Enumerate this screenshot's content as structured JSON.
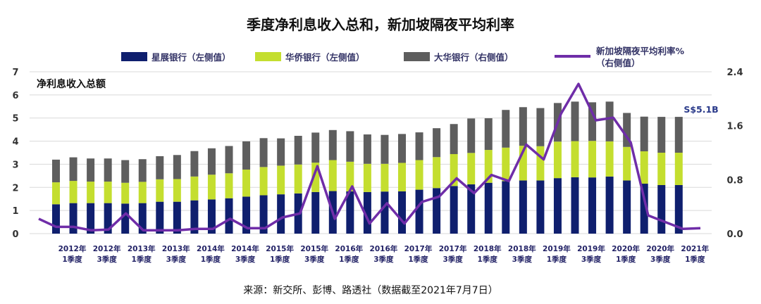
{
  "title": "季度净利息收入总和，新加坡隔夜平均利率",
  "legend": [
    {
      "key": "dbs",
      "label": "星展银行（左侧值）",
      "color": "#0f1f6e",
      "kind": "bar"
    },
    {
      "key": "ocbc",
      "label": "华侨银行（左侧值）",
      "color": "#c4de2f",
      "kind": "bar"
    },
    {
      "key": "uob",
      "label": "大华银行（右侧值）",
      "color": "#5e5e5e",
      "kind": "bar"
    },
    {
      "key": "sora",
      "label_line1": "新加坡隔夜平均利率%",
      "label_line2": "（右侧值）",
      "color": "#6f2da8",
      "kind": "line"
    }
  ],
  "annotation": "净利息收入总额",
  "end_label": "S$5.1B",
  "source": "来源：新交所、彭博、路透社（数据截至2021年7月7日）",
  "chart_data": {
    "type": "bar",
    "stacked": true,
    "title": "季度净利息收入总和，新加坡隔夜平均利率",
    "y_left": {
      "ylim": [
        0,
        7
      ],
      "ticks": [
        "0",
        "1",
        "2",
        "3",
        "4",
        "5",
        "6",
        "7"
      ]
    },
    "y_right": {
      "ylim": [
        0,
        2.4
      ],
      "ticks": [
        "0.0",
        "0.8",
        "1.6",
        "2.4"
      ]
    },
    "x_tick_labels": [
      {
        "index": 0,
        "line1": "2012年",
        "line2": "1季度"
      },
      {
        "index": 2,
        "line1": "2012年",
        "line2": "3季度"
      },
      {
        "index": 4,
        "line1": "2013年",
        "line2": "1季度"
      },
      {
        "index": 6,
        "line1": "2013年",
        "line2": "3季度"
      },
      {
        "index": 8,
        "line1": "2014年",
        "line2": "1季度"
      },
      {
        "index": 10,
        "line1": "2014年",
        "line2": "3季度"
      },
      {
        "index": 12,
        "line1": "2015年",
        "line2": "1季度"
      },
      {
        "index": 14,
        "line1": "2015年",
        "line2": "3季度"
      },
      {
        "index": 16,
        "line1": "2016年",
        "line2": "1季度"
      },
      {
        "index": 18,
        "line1": "2016年",
        "line2": "3季度"
      },
      {
        "index": 20,
        "line1": "2017年",
        "line2": "1季度"
      },
      {
        "index": 22,
        "line1": "2017年",
        "line2": "3季度"
      },
      {
        "index": 24,
        "line1": "2018年",
        "line2": "1季度"
      },
      {
        "index": 26,
        "line1": "2018年",
        "line2": "3季度"
      },
      {
        "index": 28,
        "line1": "2019年",
        "line2": "1季度"
      },
      {
        "index": 30,
        "line1": "2019年",
        "line2": "3季度"
      },
      {
        "index": 32,
        "line1": "2020年",
        "line2": "1季度"
      },
      {
        "index": 34,
        "line1": "2020年",
        "line2": "3季度"
      },
      {
        "index": 36,
        "line1": "2021年",
        "line2": "1季度"
      }
    ],
    "series": [
      {
        "name": "星展银行（左侧值）",
        "axis": "left",
        "values": [
          1.27,
          1.32,
          1.32,
          1.32,
          1.3,
          1.32,
          1.38,
          1.38,
          1.44,
          1.48,
          1.53,
          1.6,
          1.66,
          1.7,
          1.74,
          1.8,
          1.84,
          1.83,
          1.8,
          1.82,
          1.83,
          1.9,
          1.97,
          2.06,
          2.13,
          2.2,
          2.27,
          2.3,
          2.3,
          2.4,
          2.44,
          2.43,
          2.47,
          2.3,
          2.16,
          2.1,
          2.1
        ]
      },
      {
        "name": "华侨银行（左侧值）",
        "axis": "left",
        "values": [
          0.95,
          0.96,
          0.93,
          0.93,
          0.9,
          0.92,
          0.97,
          0.98,
          1.03,
          1.07,
          1.08,
          1.17,
          1.22,
          1.24,
          1.25,
          1.27,
          1.34,
          1.28,
          1.22,
          1.2,
          1.23,
          1.28,
          1.34,
          1.38,
          1.36,
          1.42,
          1.45,
          1.5,
          1.48,
          1.58,
          1.56,
          1.58,
          1.52,
          1.45,
          1.4,
          1.4,
          1.4
        ]
      },
      {
        "name": "大华银行（右侧值）",
        "axis": "left",
        "values": [
          0.98,
          1.02,
          1.0,
          1.0,
          0.98,
          0.98,
          1.0,
          1.04,
          1.1,
          1.14,
          1.18,
          1.22,
          1.25,
          1.18,
          1.24,
          1.3,
          1.3,
          1.32,
          1.27,
          1.25,
          1.25,
          1.2,
          1.25,
          1.3,
          1.49,
          1.37,
          1.63,
          1.67,
          1.65,
          1.67,
          1.71,
          1.67,
          1.72,
          1.47,
          1.5,
          1.55,
          1.55
        ]
      },
      {
        "name": "新加坡隔夜平均利率%（右侧值）",
        "axis": "right",
        "values": [
          0.22,
          0.1,
          0.1,
          0.05,
          0.06,
          0.3,
          0.05,
          0.05,
          0.05,
          0.07,
          0.07,
          0.22,
          0.08,
          0.08,
          0.24,
          0.3,
          1.0,
          0.22,
          0.7,
          0.15,
          0.45,
          0.15,
          0.47,
          0.55,
          0.82,
          0.6,
          0.87,
          0.78,
          1.32,
          1.1,
          1.78,
          2.22,
          1.68,
          1.72,
          1.35,
          0.27,
          0.17,
          0.07,
          0.08
        ]
      }
    ]
  }
}
